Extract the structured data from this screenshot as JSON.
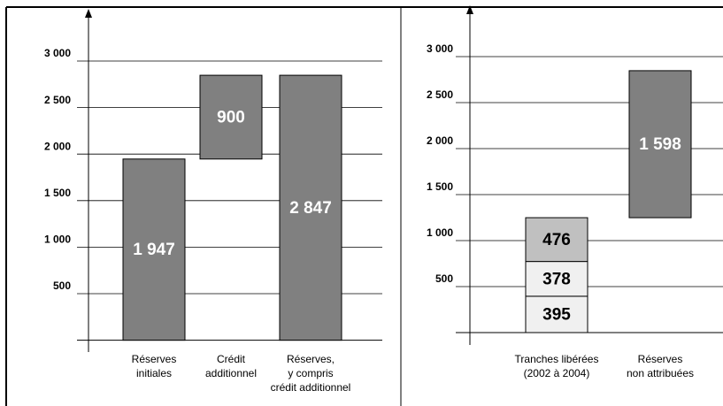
{
  "chart_data": [
    {
      "type": "waterfall",
      "categories": [
        [
          "Réserves",
          "initiales"
        ],
        [
          "Crédit",
          "additionnel"
        ],
        [
          "Réserves,",
          "y compris",
          "crédit additionnel"
        ]
      ],
      "values": [
        [
          1947
        ],
        [
          900
        ],
        [
          2847
        ]
      ],
      "value_labels": [
        [
          "1 947"
        ],
        [
          "900"
        ],
        [
          "2 847"
        ]
      ],
      "totals": [
        false,
        false,
        true
      ],
      "colors": [
        [
          "#808080"
        ],
        [
          "#808080"
        ],
        [
          "#808080"
        ]
      ],
      "label_color": "#ffffff",
      "ylim": [
        0,
        3000
      ],
      "yticks": [
        500,
        {
          "value": 1000,
          "label": "1 000"
        },
        {
          "value": 1500,
          "label": "1 500"
        },
        {
          "value": 2000,
          "label": "2 000"
        },
        {
          "value": 2500,
          "label": "2 500"
        },
        {
          "value": 3000,
          "label": "3 000"
        }
      ],
      "grid": true
    },
    {
      "type": "waterfall",
      "categories": [
        [
          "Tranches libérées",
          "(2002 à 2004)"
        ],
        [
          "Réserves",
          "non attribuées"
        ]
      ],
      "values": [
        [
          395,
          378,
          476
        ],
        [
          1598
        ]
      ],
      "value_labels": [
        [
          "395",
          "378",
          "476"
        ],
        [
          "1 598"
        ]
      ],
      "totals": [
        false,
        false
      ],
      "colors": [
        [
          "#f0f0f0",
          "#f0f0f0",
          "#c0c0c0"
        ],
        [
          "#808080"
        ]
      ],
      "label_colors": [
        [
          "#000000",
          "#000000",
          "#000000"
        ],
        [
          "#ffffff"
        ]
      ],
      "ylim": [
        0,
        3000
      ],
      "yticks": [
        500,
        {
          "value": 1000,
          "label": "1 000"
        },
        {
          "value": 1500,
          "label": "1 500"
        },
        {
          "value": 2000,
          "label": "2 000"
        },
        {
          "value": 2500,
          "label": "2 500"
        },
        {
          "value": 3000,
          "label": "3 000"
        }
      ],
      "grid": true
    }
  ]
}
